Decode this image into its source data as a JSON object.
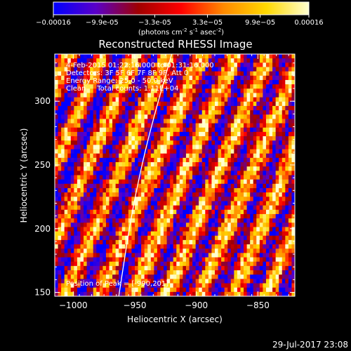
{
  "colorbar": {
    "tick_labels": [
      "-0.00016",
      "-9.9e-05",
      "-3.3e-05",
      "3.3e-05",
      "9.9e-05",
      "0.00016"
    ],
    "min": -0.00016,
    "max": 0.00016,
    "units": "(photons cm-2 s-1 asec-2)",
    "units_base": "(photons cm",
    "units_exp1": "-2",
    "units_mid": " s",
    "units_exp2": "-1",
    "units_tail": " asec",
    "units_exp3": "-2",
    "units_end": ")"
  },
  "chart_data": {
    "type": "heatmap",
    "title": "Reconstructed RHESSI Image",
    "xlabel": "Heliocentric X (arcsec)",
    "ylabel": "Heliocentric Y (arcsec)",
    "xlim": [
      -1015,
      -820
    ],
    "ylim": [
      147,
      337
    ],
    "x_ticks": [
      -1000,
      -950,
      -900,
      -850
    ],
    "x_tick_labels": [
      "−1000",
      "−950",
      "−900",
      "−850"
    ],
    "y_ticks": [
      150,
      200,
      250,
      300
    ],
    "y_tick_labels": [
      "150",
      "200",
      "250",
      "300"
    ],
    "info_lines": [
      "4-Feb-2015 01:22:16.000 to 01:31:16.000",
      "Detectors: 3F 5F 6F 7F 8F 9F, Att 0",
      "Energy Range: 25.0 - 50.0 keV",
      "Clean     Total counts: 1.11E+04"
    ],
    "peak_label": "Position of Peak = [-990,201]",
    "limb": {
      "points": [
        [
          -963,
          147
        ],
        [
          -953,
          210
        ],
        [
          -942,
          260
        ],
        [
          -931,
          300
        ],
        [
          -920,
          337
        ]
      ]
    },
    "colormap": [
      "#0000ff",
      "#5a00c8",
      "#a00000",
      "#ff0000",
      "#ff8a00",
      "#ffd800",
      "#ffffd0"
    ],
    "grid_rows": 56,
    "grid_cols": 75
  },
  "timestamp": "29-Jul-2017 23:08"
}
